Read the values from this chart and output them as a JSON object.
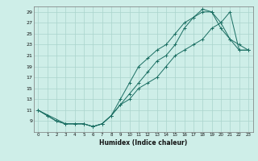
{
  "xlabel": "Humidex (Indice chaleur)",
  "background_color": "#ceeee8",
  "grid_color": "#aad4cc",
  "line_color": "#1a6e62",
  "xlim": [
    -0.5,
    23.5
  ],
  "ylim": [
    7,
    30
  ],
  "xticks": [
    0,
    1,
    2,
    3,
    4,
    5,
    6,
    7,
    8,
    9,
    10,
    11,
    12,
    13,
    14,
    15,
    16,
    17,
    18,
    19,
    20,
    21,
    22,
    23
  ],
  "yticks": [
    9,
    11,
    13,
    15,
    17,
    19,
    21,
    23,
    25,
    27,
    29
  ],
  "line1_x": [
    0,
    1,
    2,
    3,
    4,
    5,
    6,
    7,
    8,
    9,
    10,
    11,
    12,
    13,
    14,
    15,
    16,
    17,
    18,
    19,
    20,
    21,
    22,
    23
  ],
  "line1_y": [
    11,
    10,
    9,
    8.5,
    8.5,
    8.5,
    8,
    8.5,
    10,
    12,
    14,
    16,
    18,
    20,
    21,
    23,
    26,
    28,
    29.5,
    29,
    27,
    24,
    23,
    22
  ],
  "line2_x": [
    0,
    1,
    2,
    3,
    4,
    5,
    6,
    7,
    8,
    9,
    10,
    11,
    12,
    13,
    14,
    15,
    16,
    17,
    18,
    19,
    20,
    21,
    22,
    23
  ],
  "line2_y": [
    11,
    10,
    9,
    8.5,
    8.5,
    8.5,
    8,
    8.5,
    10,
    13,
    16,
    19,
    20.5,
    22,
    23,
    25,
    27,
    28,
    29,
    29,
    26,
    24,
    22,
    22
  ],
  "line3_x": [
    0,
    3,
    5,
    6,
    7,
    8,
    9,
    10,
    11,
    12,
    13,
    14,
    15,
    16,
    17,
    18,
    19,
    20,
    21,
    22,
    23
  ],
  "line3_y": [
    11,
    8.5,
    8.5,
    8,
    8.5,
    10,
    12,
    13,
    15,
    16,
    17,
    19,
    21,
    22,
    23,
    24,
    26,
    27,
    29,
    22,
    22
  ]
}
